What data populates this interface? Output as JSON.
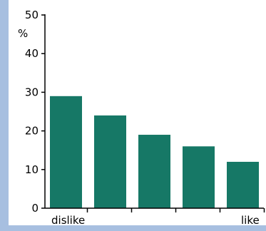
{
  "colors": {
    "bar": "#167866",
    "border_band": "#a7bfe0",
    "axis": "#000000"
  },
  "chart_data": {
    "type": "bar",
    "categories": [
      "dislike",
      "",
      "",
      "",
      "like"
    ],
    "values": [
      29,
      24,
      19,
      16,
      12
    ],
    "title": "",
    "xlabel": "",
    "ylabel": "%",
    "ylim": [
      0,
      50
    ],
    "yticks": [
      "0",
      "10",
      "20",
      "30",
      "40",
      "50"
    ],
    "grid": false,
    "legend": "none"
  }
}
